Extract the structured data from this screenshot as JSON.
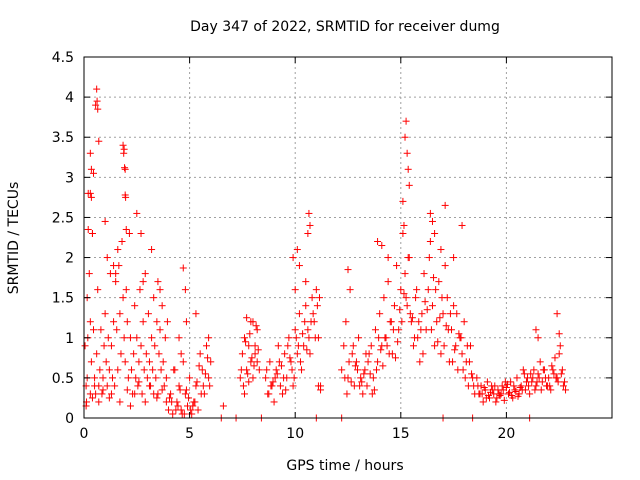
{
  "chart_data": {
    "type": "scatter",
    "title": "Day 347 of 2022, SRMTID for receiver dumg",
    "xlabel": "GPS time / hours",
    "ylabel": "SRMTID / TECUs",
    "xlim": [
      0,
      25
    ],
    "ylim": [
      0,
      4.5
    ],
    "xticks": [
      0,
      5,
      10,
      15,
      20
    ],
    "yticks": [
      0,
      0.5,
      1,
      1.5,
      2,
      2.5,
      3,
      3.5,
      4,
      4.5
    ],
    "grid": true,
    "marker": "plus",
    "color": "#ff0000",
    "series": [
      {
        "x": [
          0.05,
          0.1,
          0.15,
          0.2,
          0.25,
          0.3,
          0.35,
          0.4,
          0.45,
          0.5,
          0.55,
          0.6,
          0.65,
          0.7,
          0.75,
          0.8,
          0.85,
          0.9,
          0.95,
          1.0,
          1.05,
          1.1,
          1.15,
          1.2,
          1.25,
          1.3,
          1.35,
          1.4,
          1.45,
          1.5,
          1.55,
          1.6,
          1.65,
          1.7,
          1.75,
          1.8,
          1.85,
          1.9,
          1.95,
          2.0,
          2.05,
          2.1,
          2.15,
          2.2,
          2.25,
          2.3,
          2.35,
          2.4,
          2.45,
          2.5,
          2.55,
          2.6,
          2.65,
          2.7,
          2.75,
          2.8,
          2.85,
          2.9,
          2.95,
          3.0,
          3.05,
          3.1,
          3.15,
          3.2,
          3.25,
          3.3,
          3.35,
          3.4,
          3.45,
          3.5,
          3.55,
          3.6,
          3.65,
          3.7,
          3.75,
          3.8,
          3.85,
          3.9,
          3.95,
          0.2,
          0.3,
          0.35,
          0.45,
          0.55,
          0.6,
          0.62,
          0.65,
          0.7,
          0.3,
          0.35,
          0.4,
          1.0,
          1.1,
          1.4,
          1.5,
          1.6,
          1.85,
          1.9,
          1.95,
          1.88,
          1.92,
          1.95,
          1.97,
          2.0,
          2.5,
          2.7,
          2.8,
          3.2,
          3.5,
          3.6,
          0.1,
          0.12,
          0.15,
          0.18,
          0.3,
          0.4,
          0.5,
          0.7,
          0.9,
          1.2,
          1.3,
          1.7,
          2.05,
          2.2,
          2.4,
          2.6,
          2.9,
          3.1,
          3.3,
          3.45,
          3.7,
          3.9
        ],
        "y": [
          0.9,
          0.4,
          1.5,
          2.35,
          1.8,
          1.2,
          0.7,
          2.3,
          1.1,
          0.5,
          0.3,
          0.8,
          1.6,
          0.4,
          0.6,
          1.1,
          0.3,
          0.5,
          0.9,
          1.3,
          0.7,
          0.4,
          1.0,
          0.6,
          1.8,
          0.9,
          0.5,
          1.2,
          0.4,
          1.7,
          1.1,
          0.6,
          1.9,
          1.3,
          0.8,
          2.2,
          1.5,
          1.0,
          0.7,
          1.6,
          1.2,
          0.5,
          2.3,
          1.0,
          0.6,
          0.3,
          0.8,
          1.4,
          0.5,
          1.0,
          0.4,
          0.7,
          1.6,
          0.9,
          0.3,
          1.2,
          0.6,
          1.8,
          0.8,
          0.5,
          1.3,
          0.7,
          0.4,
          1.0,
          0.6,
          1.5,
          0.9,
          0.5,
          1.2,
          0.3,
          0.8,
          1.1,
          0.6,
          1.4,
          0.7,
          0.4,
          1.0,
          0.5,
          1.2,
          2.8,
          3.3,
          3.1,
          3.05,
          3.9,
          4.1,
          3.95,
          3.85,
          3.45,
          2.8,
          2.75,
          2.3,
          2.45,
          2.0,
          1.9,
          1.8,
          2.1,
          3.4,
          3.35,
          3.1,
          3.3,
          3.12,
          2.78,
          2.75,
          2.35,
          2.55,
          2.3,
          1.7,
          2.1,
          1.7,
          1.6,
          0.15,
          0.2,
          0.5,
          1.0,
          0.3,
          0.25,
          0.4,
          0.2,
          0.35,
          0.25,
          0.3,
          0.2,
          0.35,
          0.15,
          0.3,
          0.45,
          0.2,
          0.4,
          0.3,
          0.25,
          0.35,
          0.2
        ]
      },
      {
        "x": [
          4.0,
          4.1,
          4.2,
          4.3,
          4.4,
          4.5,
          4.6,
          4.7,
          4.8,
          4.9,
          5.0,
          5.1,
          5.2,
          5.3,
          5.4,
          5.5,
          5.6,
          5.7,
          5.8,
          5.9,
          6.0,
          4.15,
          4.35,
          4.55,
          4.75,
          4.95,
          5.15,
          5.35,
          5.55,
          5.75,
          5.95,
          4.05,
          4.25,
          4.45,
          4.65,
          4.85,
          5.05,
          5.25,
          5.45,
          5.65,
          5.85,
          4.7,
          4.8,
          4.85,
          5.3,
          4.5,
          4.6,
          5.9
        ],
        "y": [
          0.1,
          0.3,
          0.05,
          0.6,
          0.2,
          0.4,
          0.1,
          0.7,
          0.3,
          0.15,
          0.5,
          0.05,
          0.2,
          0.4,
          0.1,
          0.8,
          0.6,
          0.3,
          0.9,
          0.5,
          0.7,
          0.2,
          0.1,
          0.35,
          0.05,
          0.25,
          0.15,
          0.45,
          0.3,
          0.55,
          0.4,
          0.25,
          0.6,
          0.15,
          0.05,
          0.35,
          0.1,
          0.2,
          0.65,
          0.4,
          0.75,
          1.87,
          1.6,
          1.2,
          1.3,
          1.0,
          0.8,
          1.0
        ]
      },
      {
        "x": [
          6.5,
          6.6,
          7.2,
          7.4,
          7.5,
          7.6,
          7.7,
          7.8,
          7.9,
          8.0,
          8.1,
          8.2,
          8.3,
          7.55,
          7.65,
          7.75,
          7.85,
          7.95,
          8.05,
          8.15,
          8.25,
          7.45,
          7.6,
          7.8,
          8.0,
          8.2,
          8.4,
          7.7,
          7.9,
          8.1
        ],
        "y": [
          0.0,
          0.15,
          0.0,
          0.5,
          0.8,
          1.0,
          0.6,
          0.9,
          0.7,
          1.2,
          0.8,
          1.1,
          0.6,
          0.4,
          0.95,
          0.55,
          1.05,
          0.75,
          0.65,
          1.15,
          0.85,
          0.6,
          0.3,
          0.45,
          0.5,
          0.7,
          0.0,
          1.25,
          1.2,
          0.9
        ]
      },
      {
        "x": [
          8.6,
          8.7,
          8.8,
          8.9,
          9.0,
          9.1,
          9.2,
          9.3,
          9.4,
          9.5,
          9.6,
          9.7,
          9.8,
          9.9,
          10.0,
          10.1,
          10.2,
          10.3,
          10.4,
          10.5,
          10.6,
          10.7,
          10.8,
          10.9,
          11.0,
          11.1,
          11.2,
          8.65,
          8.85,
          9.05,
          9.25,
          9.45,
          9.65,
          9.85,
          10.05,
          10.25,
          10.45,
          10.65,
          10.85,
          11.05,
          8.75,
          8.95,
          9.15,
          9.35,
          9.55,
          9.75,
          9.95,
          10.15,
          10.35,
          10.55,
          10.75,
          10.95,
          11.15,
          9.9,
          10.0,
          10.1,
          10.2,
          10.5,
          10.6,
          10.65,
          10.7,
          11.1,
          11.2,
          11.0
        ],
        "y": [
          0.5,
          0.3,
          0.7,
          0.4,
          0.2,
          0.6,
          0.9,
          0.4,
          0.3,
          0.8,
          0.5,
          1.0,
          0.7,
          0.4,
          1.1,
          0.8,
          1.3,
          0.6,
          0.9,
          1.4,
          1.1,
          0.8,
          1.5,
          1.2,
          1.6,
          1.0,
          0.4,
          0.6,
          0.4,
          0.5,
          0.7,
          0.5,
          0.9,
          0.6,
          1.0,
          0.7,
          1.2,
          1.0,
          1.3,
          1.4,
          0.3,
          0.45,
          0.55,
          0.65,
          0.35,
          0.75,
          0.5,
          0.9,
          1.05,
          0.85,
          1.2,
          1.0,
          1.5,
          2.0,
          1.6,
          2.1,
          1.9,
          1.7,
          2.3,
          2.55,
          2.4,
          0.4,
          0.35,
          0.0
        ]
      },
      {
        "x": [
          12.2,
          12.3,
          12.4,
          12.5,
          12.6,
          12.7,
          12.8,
          12.9,
          13.0,
          13.1,
          13.2,
          13.3,
          13.4,
          13.5,
          13.6,
          13.7,
          13.8,
          13.9,
          14.0,
          14.1,
          14.2,
          14.3,
          14.4,
          14.5,
          14.6,
          14.7,
          14.8,
          14.9,
          15.0,
          15.1,
          15.2,
          15.3,
          15.4,
          15.5,
          15.6,
          15.7,
          15.8,
          15.9,
          16.0,
          16.1,
          16.2,
          16.3,
          16.4,
          16.5,
          16.6,
          16.7,
          16.8,
          16.9,
          17.0,
          17.1,
          17.2,
          17.3,
          17.4,
          17.5,
          17.6,
          17.7,
          17.8,
          17.9,
          18.0,
          18.1,
          18.2,
          18.3,
          18.4,
          18.5,
          12.35,
          12.55,
          12.75,
          12.95,
          13.15,
          13.35,
          13.55,
          13.75,
          13.95,
          14.15,
          14.35,
          14.55,
          14.75,
          14.95,
          15.15,
          15.35,
          15.55,
          15.75,
          15.95,
          16.15,
          16.35,
          16.55,
          16.75,
          16.95,
          17.15,
          17.35,
          17.55,
          17.75,
          17.95,
          18.15,
          18.35,
          12.45,
          12.65,
          12.85,
          13.05,
          13.25,
          13.45,
          13.65,
          13.85,
          14.05,
          14.25,
          14.45,
          14.65,
          14.85,
          15.05,
          15.25,
          15.45,
          15.65,
          15.85,
          16.05,
          16.25,
          16.45,
          16.65,
          16.85,
          17.05,
          17.25,
          17.45,
          17.65,
          17.85,
          18.05,
          18.25,
          18.45,
          15.2,
          15.25,
          15.3,
          15.35,
          15.4,
          15.1,
          15.15,
          16.4,
          16.5,
          16.6,
          17.1,
          17.9,
          12.5,
          13.9,
          14.1,
          14.4,
          16.9,
          17.5,
          12.2,
          17.0,
          18.4
        ],
        "y": [
          0.6,
          0.9,
          1.2,
          0.5,
          1.6,
          0.8,
          0.4,
          0.7,
          1.0,
          0.5,
          0.3,
          0.6,
          0.4,
          0.8,
          0.9,
          0.5,
          1.1,
          0.7,
          1.3,
          0.9,
          1.5,
          1.0,
          1.7,
          1.2,
          0.8,
          1.4,
          1.9,
          1.1,
          1.6,
          2.3,
          1.8,
          1.4,
          2.0,
          1.2,
          0.9,
          1.5,
          1.0,
          0.7,
          1.3,
          1.8,
          1.1,
          1.6,
          2.2,
          1.4,
          0.9,
          1.2,
          1.7,
          0.8,
          1.3,
          1.9,
          1.5,
          0.7,
          1.1,
          1.4,
          0.9,
          0.6,
          1.0,
          0.8,
          1.2,
          0.7,
          0.4,
          0.9,
          0.5,
          0.3,
          0.5,
          0.7,
          0.9,
          0.6,
          0.45,
          0.8,
          0.55,
          0.35,
          1.0,
          0.65,
          0.9,
          1.2,
          0.75,
          1.35,
          1.55,
          2.0,
          1.25,
          1.6,
          1.1,
          1.45,
          2.0,
          1.75,
          0.95,
          1.5,
          1.15,
          1.3,
          0.85,
          1.05,
          0.6,
          0.9,
          0.55,
          0.3,
          0.45,
          0.65,
          0.4,
          0.55,
          0.7,
          0.3,
          0.6,
          0.85,
          1.0,
          0.8,
          1.1,
          0.95,
          1.2,
          1.5,
          1.3,
          1.0,
          1.2,
          0.8,
          1.35,
          1.1,
          1.6,
          1.25,
          0.9,
          1.1,
          0.7,
          1.3,
          1.0,
          0.5,
          0.7,
          0.4,
          3.5,
          3.7,
          3.3,
          3.1,
          2.9,
          2.7,
          2.4,
          2.55,
          2.45,
          2.3,
          2.65,
          2.4,
          1.85,
          2.2,
          2.15,
          2.0,
          2.1,
          2.0,
          0.0,
          0.0,
          0.0
        ]
      },
      {
        "x": [
          18.6,
          18.7,
          18.8,
          18.9,
          19.0,
          19.1,
          19.2,
          19.3,
          19.4,
          19.5,
          19.6,
          19.7,
          19.8,
          19.9,
          20.0,
          20.1,
          20.2,
          20.3,
          20.4,
          20.5,
          20.6,
          20.7,
          20.8,
          20.9,
          21.0,
          21.1,
          21.2,
          21.3,
          21.4,
          21.5,
          21.6,
          21.7,
          21.8,
          21.9,
          22.0,
          22.1,
          22.2,
          22.3,
          22.4,
          22.5,
          22.6,
          22.7,
          22.8,
          18.65,
          18.85,
          19.05,
          19.25,
          19.45,
          19.65,
          19.85,
          20.05,
          20.25,
          20.45,
          20.65,
          20.85,
          21.05,
          21.25,
          21.45,
          21.65,
          21.85,
          22.05,
          22.25,
          22.45,
          22.65,
          18.75,
          18.95,
          19.15,
          19.35,
          19.55,
          19.75,
          19.95,
          20.15,
          20.35,
          20.55,
          20.75,
          20.95,
          21.15,
          21.35,
          21.55,
          21.75,
          21.95,
          22.15,
          22.35,
          22.55,
          22.75,
          21.4,
          21.5,
          22.4,
          22.5,
          21.1
        ],
        "y": [
          0.5,
          0.3,
          0.4,
          0.2,
          0.35,
          0.45,
          0.25,
          0.4,
          0.3,
          0.2,
          0.35,
          0.28,
          0.4,
          0.22,
          0.38,
          0.3,
          0.45,
          0.25,
          0.35,
          0.5,
          0.3,
          0.4,
          0.6,
          0.35,
          0.5,
          0.3,
          0.45,
          0.6,
          0.4,
          0.55,
          0.7,
          0.45,
          0.6,
          0.4,
          0.5,
          0.35,
          0.6,
          0.75,
          0.5,
          0.8,
          0.55,
          0.4,
          0.35,
          0.4,
          0.3,
          0.25,
          0.32,
          0.4,
          0.3,
          0.35,
          0.42,
          0.28,
          0.33,
          0.38,
          0.55,
          0.4,
          0.5,
          0.45,
          0.35,
          0.5,
          0.4,
          0.55,
          0.45,
          0.6,
          0.3,
          0.38,
          0.28,
          0.35,
          0.25,
          0.3,
          0.45,
          0.32,
          0.4,
          0.27,
          0.35,
          0.45,
          0.55,
          0.35,
          0.5,
          0.6,
          0.4,
          0.65,
          0.5,
          0.9,
          0.45,
          1.1,
          1.0,
          1.3,
          1.05,
          0.0
        ]
      }
    ]
  }
}
